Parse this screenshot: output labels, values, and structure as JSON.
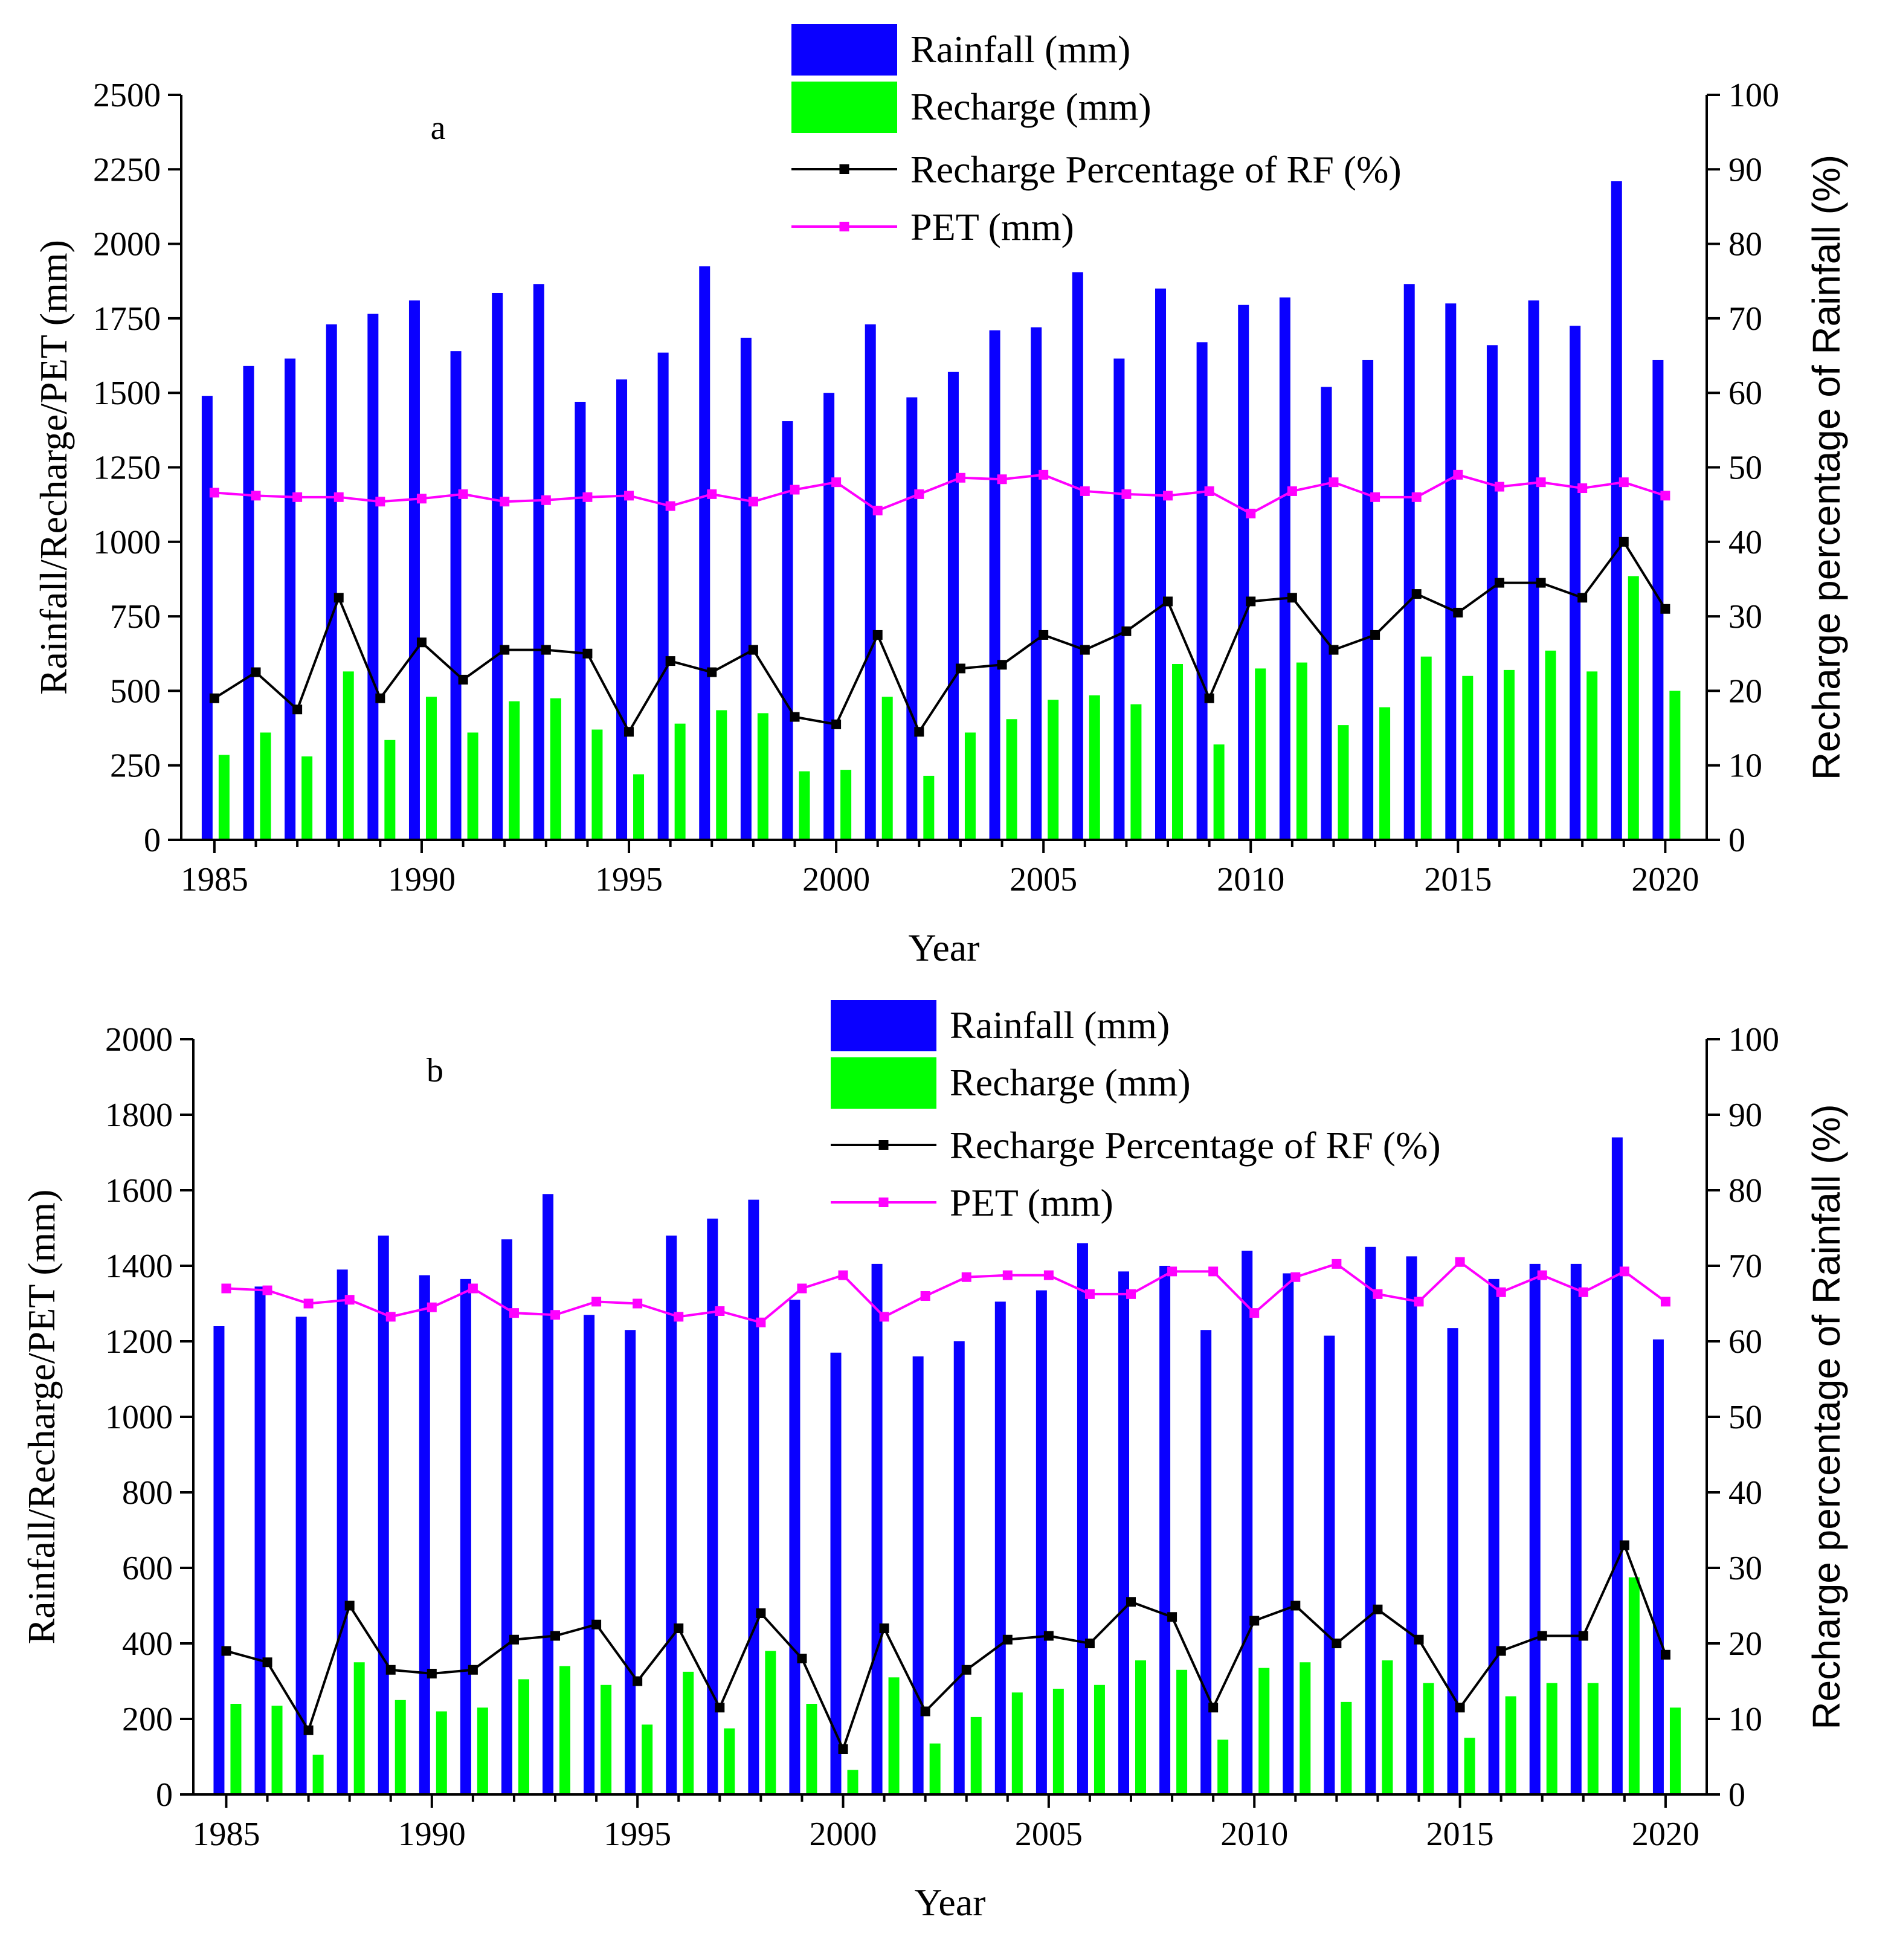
{
  "colors": {
    "rainfall": "#0a00ff",
    "recharge": "#00ff00",
    "percentage": "#000000",
    "pet": "#ff00ff"
  },
  "chart_data": [
    {
      "type": "bar",
      "panel_label": "a",
      "xlabel": "Year",
      "ylabel": "Rainfall/Recharge/PET (mm)",
      "y2label": "Recharge percentage of Rainfall (%)",
      "ylim": [
        0,
        2500
      ],
      "y2lim": [
        0,
        100
      ],
      "xlim": [
        1984.2,
        2021
      ],
      "y_ticks": [
        0,
        250,
        500,
        750,
        1000,
        1250,
        1500,
        1750,
        2000,
        2250,
        2500
      ],
      "y2_ticks": [
        0,
        10,
        20,
        30,
        40,
        50,
        60,
        70,
        80,
        90,
        100
      ],
      "x_ticks": [
        1985,
        1990,
        1995,
        2000,
        2005,
        2010,
        2015,
        2020
      ],
      "legend": [
        "Rainfall (mm)",
        "Recharge (mm)",
        "Recharge Percentage of RF (%)",
        "PET (mm)"
      ],
      "x": [
        1985,
        1986,
        1987,
        1988,
        1989,
        1990,
        1991,
        1992,
        1993,
        1994,
        1995,
        1996,
        1997,
        1998,
        1999,
        2000,
        2001,
        2002,
        2003,
        2004,
        2005,
        2006,
        2007,
        2008,
        2009,
        2010,
        2011,
        2012,
        2013,
        2014,
        2015,
        2016,
        2017,
        2018,
        2019,
        2020
      ],
      "series": [
        {
          "name": "Rainfall (mm)",
          "kind": "bar",
          "axis": "left",
          "values": [
            1490,
            1590,
            1615,
            1730,
            1765,
            1810,
            1640,
            1835,
            1865,
            1470,
            1545,
            1635,
            1925,
            1685,
            1405,
            1500,
            1730,
            1485,
            1570,
            1710,
            1720,
            1905,
            1615,
            1850,
            1670,
            1795,
            1820,
            1520,
            1610,
            1865,
            1800,
            1660,
            1810,
            1725,
            2210,
            1610
          ]
        },
        {
          "name": "Recharge (mm)",
          "kind": "bar",
          "axis": "left",
          "values": [
            285,
            360,
            280,
            565,
            335,
            480,
            360,
            465,
            475,
            370,
            220,
            390,
            435,
            425,
            230,
            235,
            480,
            215,
            360,
            405,
            470,
            485,
            455,
            590,
            320,
            575,
            595,
            385,
            445,
            615,
            550,
            570,
            635,
            565,
            885,
            500
          ]
        },
        {
          "name": "Recharge Percentage of RF (%)",
          "kind": "line",
          "axis": "right",
          "values": [
            19,
            22.5,
            17.5,
            32.5,
            19,
            26.5,
            21.5,
            25.5,
            25.5,
            25,
            14.5,
            24,
            22.5,
            25.5,
            16.5,
            15.5,
            27.5,
            14.5,
            23,
            23.5,
            27.5,
            25.5,
            28,
            32,
            19,
            32,
            32.5,
            25.5,
            27.5,
            33,
            30.5,
            34.5,
            34.5,
            32.5,
            40,
            31
          ]
        },
        {
          "name": "PET (mm)",
          "kind": "line",
          "axis": "left",
          "values": [
            1165,
            1155,
            1150,
            1150,
            1135,
            1145,
            1160,
            1135,
            1140,
            1150,
            1155,
            1120,
            1160,
            1135,
            1175,
            1200,
            1105,
            1160,
            1215,
            1210,
            1225,
            1170,
            1160,
            1155,
            1170,
            1095,
            1170,
            1200,
            1150,
            1150,
            1225,
            1185,
            1200,
            1180,
            1200,
            1155
          ]
        }
      ]
    },
    {
      "type": "bar",
      "panel_label": "b",
      "xlabel": "Year",
      "ylabel": "Rainfall/Recharge/PET (mm)",
      "y2label": "Recharge percentage of Rainfall (%)",
      "ylim": [
        0,
        2000
      ],
      "y2lim": [
        0,
        100
      ],
      "xlim": [
        1984.2,
        2021
      ],
      "y_ticks": [
        0,
        200,
        400,
        600,
        800,
        1000,
        1200,
        1400,
        1600,
        1800,
        2000
      ],
      "y2_ticks": [
        0,
        10,
        20,
        30,
        40,
        50,
        60,
        70,
        80,
        90,
        100
      ],
      "x_ticks": [
        1985,
        1990,
        1995,
        2000,
        2005,
        2010,
        2015,
        2020
      ],
      "legend": [
        "Rainfall (mm)",
        "Recharge (mm)",
        "Recharge Percentage of RF (%)",
        "PET (mm)"
      ],
      "x": [
        1985,
        1986,
        1987,
        1988,
        1989,
        1990,
        1991,
        1992,
        1993,
        1994,
        1995,
        1996,
        1997,
        1998,
        1999,
        2000,
        2001,
        2002,
        2003,
        2004,
        2005,
        2006,
        2007,
        2008,
        2009,
        2010,
        2011,
        2012,
        2013,
        2014,
        2015,
        2016,
        2017,
        2018,
        2019,
        2020
      ],
      "series": [
        {
          "name": "Rainfall (mm)",
          "kind": "bar",
          "axis": "left",
          "values": [
            1240,
            1345,
            1265,
            1390,
            1480,
            1375,
            1365,
            1470,
            1590,
            1270,
            1230,
            1480,
            1525,
            1575,
            1310,
            1170,
            1405,
            1160,
            1200,
            1305,
            1335,
            1460,
            1385,
            1400,
            1230,
            1440,
            1380,
            1215,
            1450,
            1425,
            1235,
            1365,
            1405,
            1405,
            1740,
            1205
          ]
        },
        {
          "name": "Recharge (mm)",
          "kind": "bar",
          "axis": "left",
          "values": [
            240,
            235,
            105,
            350,
            250,
            220,
            230,
            305,
            340,
            290,
            185,
            325,
            175,
            380,
            240,
            65,
            310,
            135,
            205,
            270,
            280,
            290,
            355,
            330,
            145,
            335,
            350,
            245,
            355,
            295,
            150,
            260,
            295,
            295,
            575,
            230
          ]
        },
        {
          "name": "Recharge Percentage of RF (%)",
          "kind": "line",
          "axis": "right",
          "values": [
            19,
            17.5,
            8.5,
            25,
            16.5,
            16,
            16.5,
            20.5,
            21,
            22.5,
            15,
            22,
            11.5,
            24,
            18,
            6,
            22,
            11,
            16.5,
            20.5,
            21,
            20,
            25.5,
            23.5,
            11.5,
            23,
            25,
            20,
            24.5,
            20.5,
            11.5,
            19,
            21,
            21,
            33,
            18.5
          ]
        },
        {
          "name": "PET (mm)",
          "kind": "line",
          "axis": "left",
          "values": [
            1340,
            1335,
            1300,
            1310,
            1265,
            1290,
            1340,
            1275,
            1270,
            1305,
            1300,
            1265,
            1280,
            1250,
            1340,
            1375,
            1265,
            1320,
            1370,
            1375,
            1375,
            1325,
            1325,
            1385,
            1385,
            1275,
            1370,
            1405,
            1325,
            1305,
            1410,
            1330,
            1375,
            1330,
            1385,
            1305
          ]
        }
      ]
    }
  ]
}
